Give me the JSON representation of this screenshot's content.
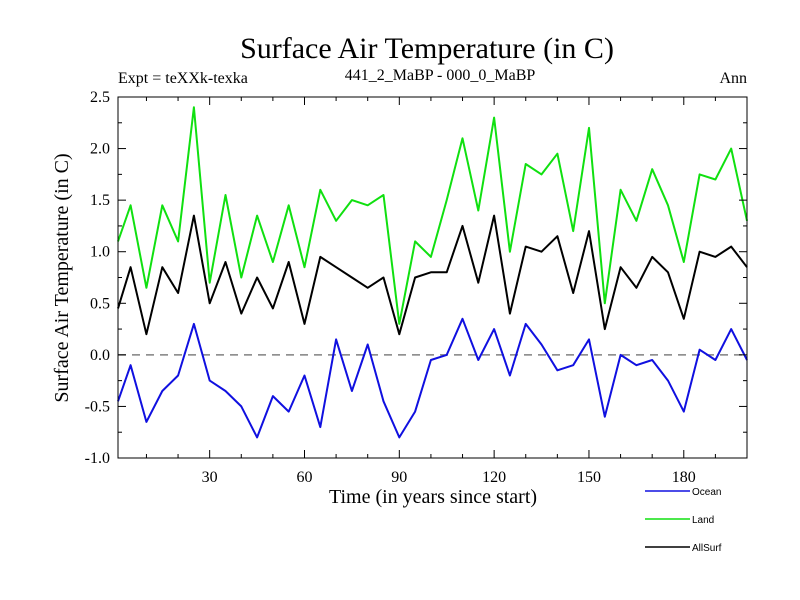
{
  "chart_data": {
    "type": "line",
    "title": "Surface Air Temperature (in C)",
    "subtitle_left": "Expt = teXXk-texka",
    "subtitle_center": "441_2_MaBP - 000_0_MaBP",
    "subtitle_right": "Ann",
    "xlabel": "Time (in years since start)",
    "ylabel": "Surface Air Temperature (in C)",
    "xlim": [
      1,
      200
    ],
    "ylim": [
      -1.0,
      2.5
    ],
    "x_ticks": [
      30,
      60,
      90,
      120,
      150,
      180
    ],
    "x_tick_labels": [
      "30",
      "60",
      "90",
      "120",
      "150",
      "180"
    ],
    "y_ticks": [
      -1.0,
      -0.5,
      0.0,
      0.5,
      1.0,
      1.5,
      2.0,
      2.5
    ],
    "y_tick_labels": [
      "-1.0",
      "-0.5",
      "0.0",
      "0.5",
      "1.0",
      "1.5",
      "2.0",
      "2.5"
    ],
    "reference_line": {
      "y": 0.0,
      "style": "dashed",
      "color": "#808080"
    },
    "legend_position": "bottom-right, below plot",
    "series": [
      {
        "name": "Ocean",
        "color": "#1010e0",
        "x": [
          1,
          5,
          10,
          15,
          20,
          25,
          30,
          35,
          40,
          45,
          50,
          55,
          60,
          65,
          70,
          75,
          80,
          85,
          90,
          95,
          100,
          105,
          110,
          115,
          120,
          125,
          130,
          135,
          140,
          145,
          150,
          155,
          160,
          165,
          170,
          175,
          180,
          185,
          190,
          195,
          200
        ],
        "values": [
          -0.45,
          -0.1,
          -0.65,
          -0.35,
          -0.2,
          0.3,
          -0.25,
          -0.35,
          -0.5,
          -0.8,
          -0.4,
          -0.55,
          -0.2,
          -0.7,
          0.15,
          -0.35,
          0.1,
          -0.45,
          -0.8,
          -0.55,
          -0.05,
          0.0,
          0.35,
          -0.05,
          0.25,
          -0.2,
          0.3,
          0.1,
          -0.15,
          -0.1,
          0.15,
          -0.6,
          0.0,
          -0.1,
          -0.05,
          -0.25,
          -0.55,
          0.05,
          -0.05,
          0.25,
          -0.05
        ]
      },
      {
        "name": "Land",
        "color": "#10e010",
        "x": [
          1,
          5,
          10,
          15,
          20,
          25,
          30,
          35,
          40,
          45,
          50,
          55,
          60,
          65,
          70,
          75,
          80,
          85,
          90,
          95,
          100,
          105,
          110,
          115,
          120,
          125,
          130,
          135,
          140,
          145,
          150,
          155,
          160,
          165,
          170,
          175,
          180,
          185,
          190,
          195,
          200
        ],
        "values": [
          1.1,
          1.45,
          0.65,
          1.45,
          1.1,
          2.4,
          0.7,
          1.55,
          0.75,
          1.35,
          0.9,
          1.45,
          0.85,
          1.6,
          1.3,
          1.5,
          1.45,
          1.55,
          0.3,
          1.1,
          0.95,
          1.5,
          2.1,
          1.4,
          2.3,
          1.0,
          1.85,
          1.75,
          1.95,
          1.2,
          2.2,
          0.5,
          1.6,
          1.3,
          1.8,
          1.45,
          0.9,
          1.75,
          1.7,
          2.0,
          1.3
        ]
      },
      {
        "name": "AllSurf",
        "color": "#000000",
        "x": [
          1,
          5,
          10,
          15,
          20,
          25,
          30,
          35,
          40,
          45,
          50,
          55,
          60,
          65,
          70,
          75,
          80,
          85,
          90,
          95,
          100,
          105,
          110,
          115,
          120,
          125,
          130,
          135,
          140,
          145,
          150,
          155,
          160,
          165,
          170,
          175,
          180,
          185,
          190,
          195,
          200
        ],
        "values": [
          0.45,
          0.85,
          0.2,
          0.85,
          0.6,
          1.35,
          0.5,
          0.9,
          0.4,
          0.75,
          0.45,
          0.9,
          0.3,
          0.95,
          0.85,
          0.75,
          0.65,
          0.75,
          0.2,
          0.75,
          0.8,
          0.8,
          1.25,
          0.7,
          1.35,
          0.4,
          1.05,
          1.0,
          1.15,
          0.6,
          1.2,
          0.25,
          0.85,
          0.65,
          0.95,
          0.8,
          0.35,
          1.0,
          0.95,
          1.05,
          0.85
        ]
      }
    ]
  }
}
